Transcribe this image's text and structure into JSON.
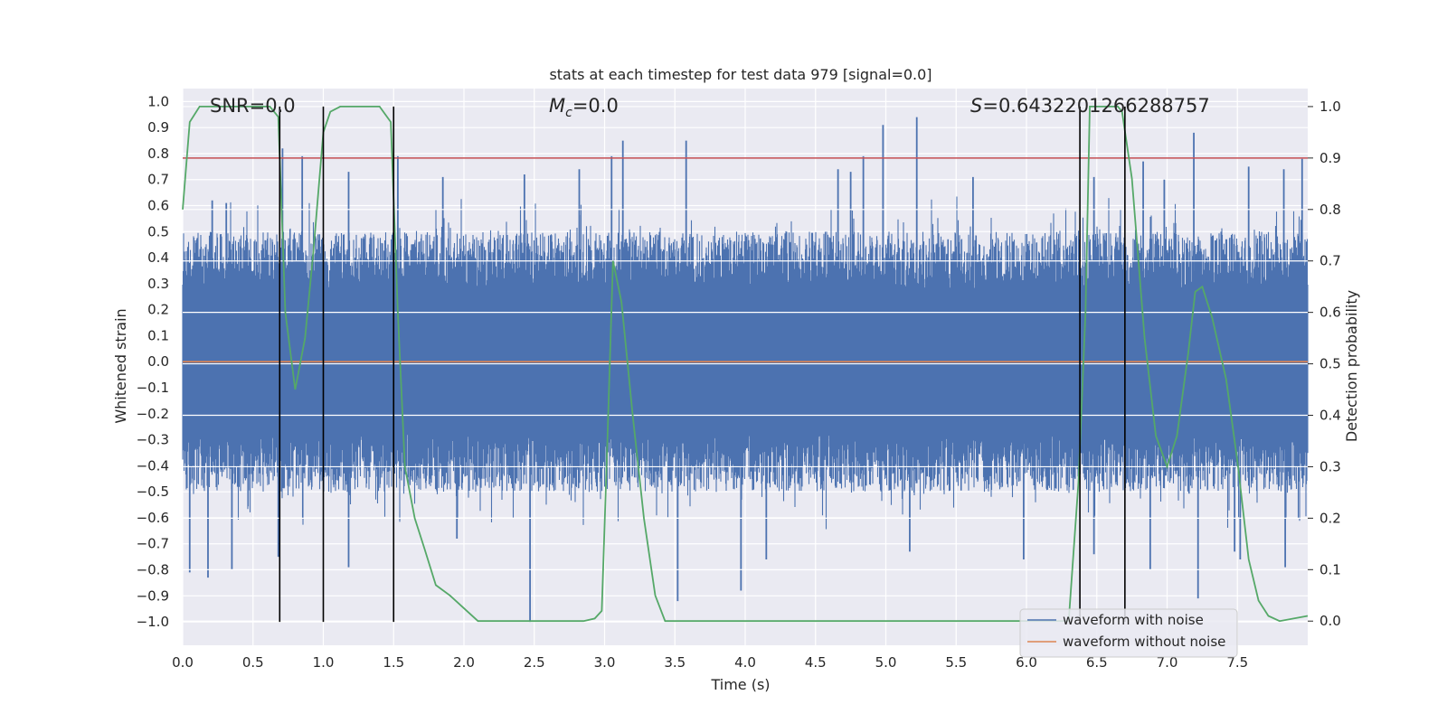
{
  "chart_data": {
    "type": "line",
    "title": "stats at each timestep for test data 979 [signal=0.0]",
    "xlabel": "Time (s)",
    "ylabel": "Whitened strain",
    "y2label": "Detection probability",
    "xlim": [
      0.0,
      8.0
    ],
    "ylim": [
      -1.09,
      1.05
    ],
    "y2lim": [
      -0.047,
      1.035
    ],
    "xticks": [
      "0.0",
      "0.5",
      "1.0",
      "1.5",
      "2.0",
      "2.5",
      "3.0",
      "3.5",
      "4.0",
      "4.5",
      "5.0",
      "5.5",
      "6.0",
      "6.5",
      "7.0",
      "7.5"
    ],
    "yticks": [
      "1.0",
      "0.9",
      "0.8",
      "0.7",
      "0.6",
      "0.5",
      "0.4",
      "0.3",
      "0.2",
      "0.1",
      "0.0",
      "-0.1",
      "-0.2",
      "-0.3",
      "-0.4",
      "-0.5",
      "-0.6",
      "-0.7",
      "-0.8",
      "-0.9",
      "-1.0"
    ],
    "y2ticks": [
      "0.0",
      "0.1",
      "0.2",
      "0.3",
      "0.4",
      "0.5",
      "0.6",
      "0.7",
      "0.8",
      "0.9",
      "1.0"
    ],
    "annotations": {
      "snr": "SNR=0.0",
      "mc_symbol": "M",
      "mc_sub": "c",
      "mc_value": "=0.0",
      "s_symbol": "S",
      "s_value": "=0.6432201266288757"
    },
    "threshold": 0.9,
    "vertical_markers": [
      0.69,
      1.0,
      1.5,
      6.38,
      6.7
    ],
    "series": [
      {
        "name": "waveform with noise",
        "color": "#4c72b0",
        "description": "whitened noise, mostly within ±0.5 with spikes",
        "peaks_pos": [
          [
            0.21,
            0.62
          ],
          [
            0.31,
            0.61
          ],
          [
            0.71,
            0.82
          ],
          [
            0.85,
            0.79
          ],
          [
            1.18,
            0.73
          ],
          [
            1.53,
            0.79
          ],
          [
            1.85,
            0.71
          ],
          [
            2.43,
            0.72
          ],
          [
            2.82,
            0.74
          ],
          [
            3.05,
            0.79
          ],
          [
            3.13,
            0.85
          ],
          [
            3.58,
            0.85
          ],
          [
            4.66,
            0.74
          ],
          [
            4.75,
            0.73
          ],
          [
            4.84,
            0.79
          ],
          [
            4.98,
            0.91
          ],
          [
            5.22,
            0.94
          ],
          [
            5.62,
            0.71
          ],
          [
            6.48,
            0.71
          ],
          [
            6.83,
            0.77
          ],
          [
            6.98,
            0.7
          ],
          [
            7.19,
            0.88
          ],
          [
            7.58,
            0.75
          ],
          [
            7.83,
            0.74
          ],
          [
            7.96,
            0.78
          ]
        ],
        "peaks_neg": [
          [
            0.05,
            -0.81
          ],
          [
            0.18,
            -0.83
          ],
          [
            0.35,
            -0.8
          ],
          [
            0.68,
            -0.75
          ],
          [
            1.18,
            -0.79
          ],
          [
            1.95,
            -0.68
          ],
          [
            2.47,
            -1.0
          ],
          [
            3.52,
            -0.92
          ],
          [
            3.97,
            -0.88
          ],
          [
            4.15,
            -0.76
          ],
          [
            5.17,
            -0.73
          ],
          [
            5.98,
            -0.76
          ],
          [
            6.48,
            -0.74
          ],
          [
            6.88,
            -0.8
          ],
          [
            7.22,
            -0.91
          ],
          [
            7.48,
            -0.73
          ],
          [
            7.52,
            -0.76
          ],
          [
            7.84,
            -0.79
          ]
        ]
      },
      {
        "name": "waveform without noise",
        "color": "#dd8452",
        "values_constant": 0.0
      },
      {
        "name": "detection probability",
        "color": "#55a868",
        "axis": "right",
        "x": [
          0.0,
          0.05,
          0.12,
          0.25,
          0.45,
          0.62,
          0.68,
          0.73,
          0.8,
          0.87,
          0.93,
          1.0,
          1.05,
          1.12,
          1.25,
          1.4,
          1.48,
          1.53,
          1.58,
          1.65,
          1.72,
          1.8,
          1.9,
          2.1,
          2.5,
          2.85,
          2.93,
          2.98,
          3.02,
          3.06,
          3.12,
          3.2,
          3.28,
          3.36,
          3.43,
          3.6,
          4.0,
          5.0,
          6.0,
          6.15,
          6.3,
          6.37,
          6.42,
          6.45,
          6.55,
          6.65,
          6.68,
          6.75,
          6.84,
          6.92,
          7.0,
          7.07,
          7.15,
          7.2,
          7.25,
          7.32,
          7.42,
          7.5,
          7.58,
          7.65,
          7.72,
          7.8,
          8.0
        ],
        "values": [
          0.8,
          0.97,
          1.0,
          1.0,
          1.0,
          1.0,
          0.98,
          0.6,
          0.45,
          0.55,
          0.72,
          0.95,
          0.99,
          1.0,
          1.0,
          1.0,
          0.97,
          0.6,
          0.3,
          0.2,
          0.14,
          0.07,
          0.05,
          0.0,
          0.0,
          0.0,
          0.005,
          0.02,
          0.35,
          0.7,
          0.62,
          0.4,
          0.2,
          0.05,
          0.0,
          0.0,
          0.0,
          0.0,
          0.0,
          0.0,
          0.0,
          0.27,
          0.6,
          1.0,
          1.0,
          1.0,
          0.99,
          0.86,
          0.55,
          0.36,
          0.3,
          0.36,
          0.52,
          0.64,
          0.65,
          0.59,
          0.47,
          0.31,
          0.12,
          0.04,
          0.01,
          0.0,
          0.01
        ]
      }
    ],
    "legend": {
      "location": "bottom-right",
      "entries": [
        "waveform with noise",
        "waveform without noise"
      ]
    },
    "colors": {
      "background": "#eaeaf2",
      "grid": "#ffffff",
      "noise": "#4c72b0",
      "clean": "#dd8452",
      "probability": "#55a868",
      "threshold": "#c44e52",
      "marker": "#000000"
    }
  }
}
